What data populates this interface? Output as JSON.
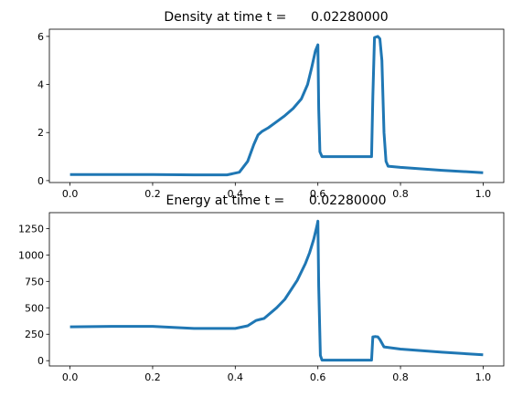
{
  "chart_data": [
    {
      "type": "line",
      "title": "Density at time t =      0.02280000",
      "xlabel": "",
      "ylabel": "",
      "xlim": [
        -0.05,
        1.05
      ],
      "ylim": [
        -0.08,
        6.3
      ],
      "xticks": [
        0.0,
        0.2,
        0.4,
        0.6,
        0.8,
        1.0
      ],
      "xtick_labels": [
        "0.0",
        "0.2",
        "0.4",
        "0.6",
        "0.8",
        "1.0"
      ],
      "yticks": [
        0,
        2,
        4,
        6
      ],
      "ytick_labels": [
        "0",
        "2",
        "4",
        "6"
      ],
      "grid": false,
      "line_color": "#1f77b4",
      "series": [
        {
          "x": [
            0.0,
            0.1,
            0.2,
            0.3,
            0.38,
            0.41,
            0.43,
            0.445,
            0.455,
            0.465,
            0.48,
            0.5,
            0.52,
            0.54,
            0.56,
            0.575,
            0.585,
            0.594,
            0.6,
            0.602,
            0.605,
            0.61,
            0.65,
            0.7,
            0.73,
            0.733,
            0.737,
            0.745,
            0.75,
            0.755,
            0.76,
            0.765,
            0.77,
            0.8,
            0.9,
            1.0
          ],
          "y": [
            0.25,
            0.25,
            0.25,
            0.24,
            0.24,
            0.35,
            0.8,
            1.5,
            1.9,
            2.05,
            2.2,
            2.45,
            2.7,
            3.0,
            3.4,
            4.0,
            4.7,
            5.4,
            5.65,
            3.0,
            1.2,
            1.0,
            1.0,
            1.0,
            1.0,
            3.5,
            5.95,
            6.0,
            5.9,
            5.0,
            2.0,
            0.8,
            0.6,
            0.55,
            0.43,
            0.33
          ]
        }
      ]
    },
    {
      "type": "line",
      "title": "Energy at time t =      0.02280000",
      "xlabel": "",
      "ylabel": "",
      "xlim": [
        -0.05,
        1.05
      ],
      "ylim": [
        -50,
        1400
      ],
      "xticks": [
        0.0,
        0.2,
        0.4,
        0.6,
        0.8,
        1.0
      ],
      "xtick_labels": [
        "0.0",
        "0.2",
        "0.4",
        "0.6",
        "0.8",
        "1.0"
      ],
      "yticks": [
        0,
        250,
        500,
        750,
        1000,
        1250
      ],
      "ytick_labels": [
        "0",
        "250",
        "500",
        "750",
        "1000",
        "1250"
      ],
      "grid": false,
      "line_color": "#1f77b4",
      "series": [
        {
          "x": [
            0.0,
            0.1,
            0.2,
            0.3,
            0.4,
            0.43,
            0.45,
            0.46,
            0.47,
            0.5,
            0.52,
            0.55,
            0.57,
            0.58,
            0.59,
            0.598,
            0.6,
            0.602,
            0.606,
            0.61,
            0.7,
            0.73,
            0.733,
            0.74,
            0.745,
            0.75,
            0.76,
            0.8,
            0.9,
            1.0
          ],
          "y": [
            320,
            325,
            325,
            305,
            305,
            330,
            380,
            390,
            400,
            500,
            580,
            760,
            920,
            1020,
            1150,
            1280,
            1320,
            700,
            50,
            5,
            5,
            5,
            225,
            228,
            225,
            200,
            130,
            110,
            80,
            55
          ]
        }
      ]
    }
  ]
}
